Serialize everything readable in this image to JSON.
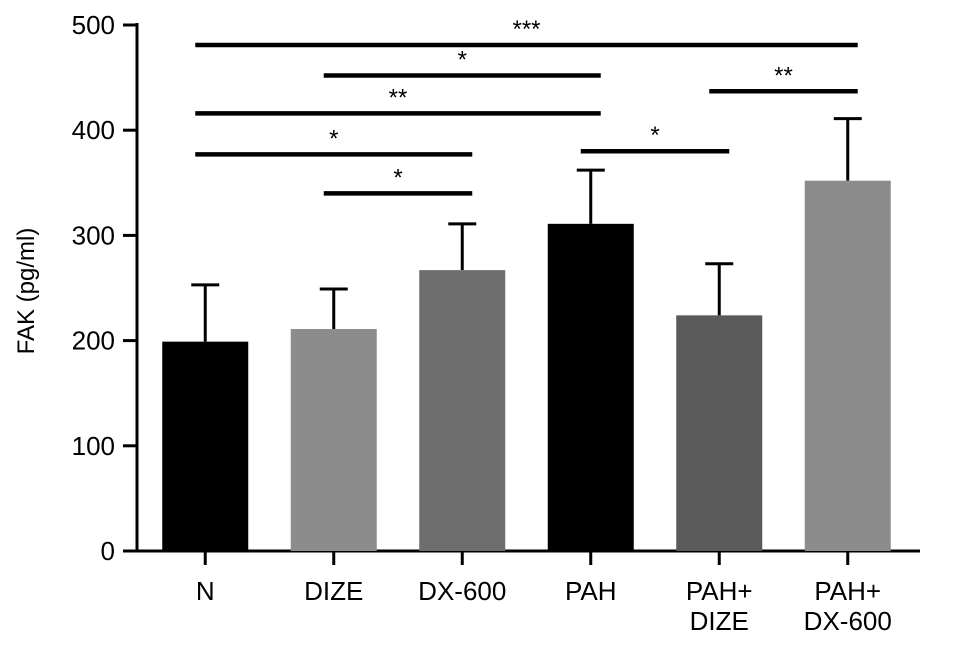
{
  "chart_data": {
    "type": "bar",
    "ylabel": "FAK (pg/ml)",
    "xlabel": "",
    "ylim": [
      0,
      500
    ],
    "yticks": [
      0,
      100,
      200,
      300,
      400,
      500
    ],
    "categories": [
      [
        "N"
      ],
      [
        "DIZE"
      ],
      [
        "DX-600"
      ],
      [
        "PAH"
      ],
      [
        "PAH+",
        "DIZE"
      ],
      [
        "PAH+",
        "DX-600"
      ]
    ],
    "values": [
      199,
      211,
      267,
      311,
      224,
      352
    ],
    "errors": [
      54,
      38,
      44,
      51,
      49,
      59
    ],
    "colors": [
      "#000000",
      "#8c8c8c",
      "#6e6e6e",
      "#000000",
      "#5a5a5a",
      "#8c8c8c"
    ],
    "grid": false,
    "significance": [
      {
        "from": 0,
        "to": 5,
        "y": 481,
        "label": "***"
      },
      {
        "from": 1,
        "to": 3,
        "y": 452,
        "label": "*"
      },
      {
        "from": 4,
        "to": 5,
        "y": 437,
        "label": "**"
      },
      {
        "from": 0,
        "to": 3,
        "y": 416,
        "label": "**"
      },
      {
        "from": 0,
        "to": 2,
        "y": 377,
        "label": "*"
      },
      {
        "from": 3,
        "to": 4,
        "y": 380,
        "label": "*"
      },
      {
        "from": 1,
        "to": 2,
        "y": 340,
        "label": "*"
      }
    ]
  }
}
